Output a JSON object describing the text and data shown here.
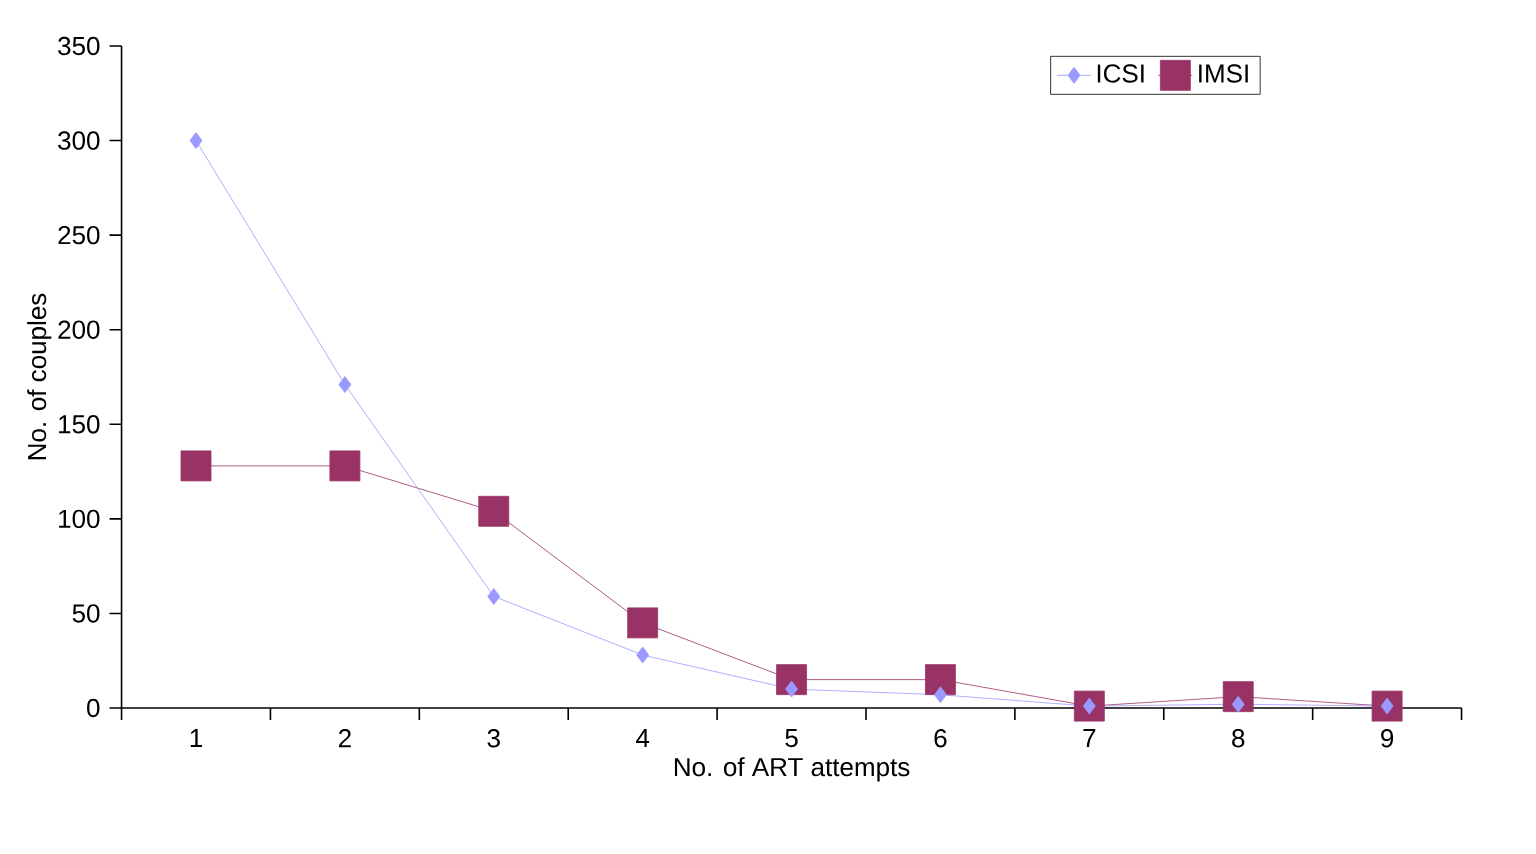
{
  "chart_data": {
    "type": "line",
    "xlabel": "No. of ART attempts",
    "ylabel": "No. of couples",
    "categories": [
      "1",
      "2",
      "3",
      "4",
      "5",
      "6",
      "7",
      "8",
      "9"
    ],
    "series": [
      {
        "name": "ICSI",
        "color": "#9999ff",
        "marker": "diamond",
        "values": [
          300,
          171,
          59,
          28,
          10,
          7,
          1,
          2,
          1
        ]
      },
      {
        "name": "IMSI",
        "color": "#993366",
        "marker": "square",
        "values": [
          128,
          128,
          104,
          45,
          15,
          15,
          1,
          6,
          1
        ]
      }
    ],
    "ylim": [
      0,
      350
    ],
    "yticks": [
      0,
      50,
      100,
      150,
      200,
      250,
      300,
      350
    ],
    "grid": false,
    "legend": "top right",
    "line_style": "solid"
  }
}
